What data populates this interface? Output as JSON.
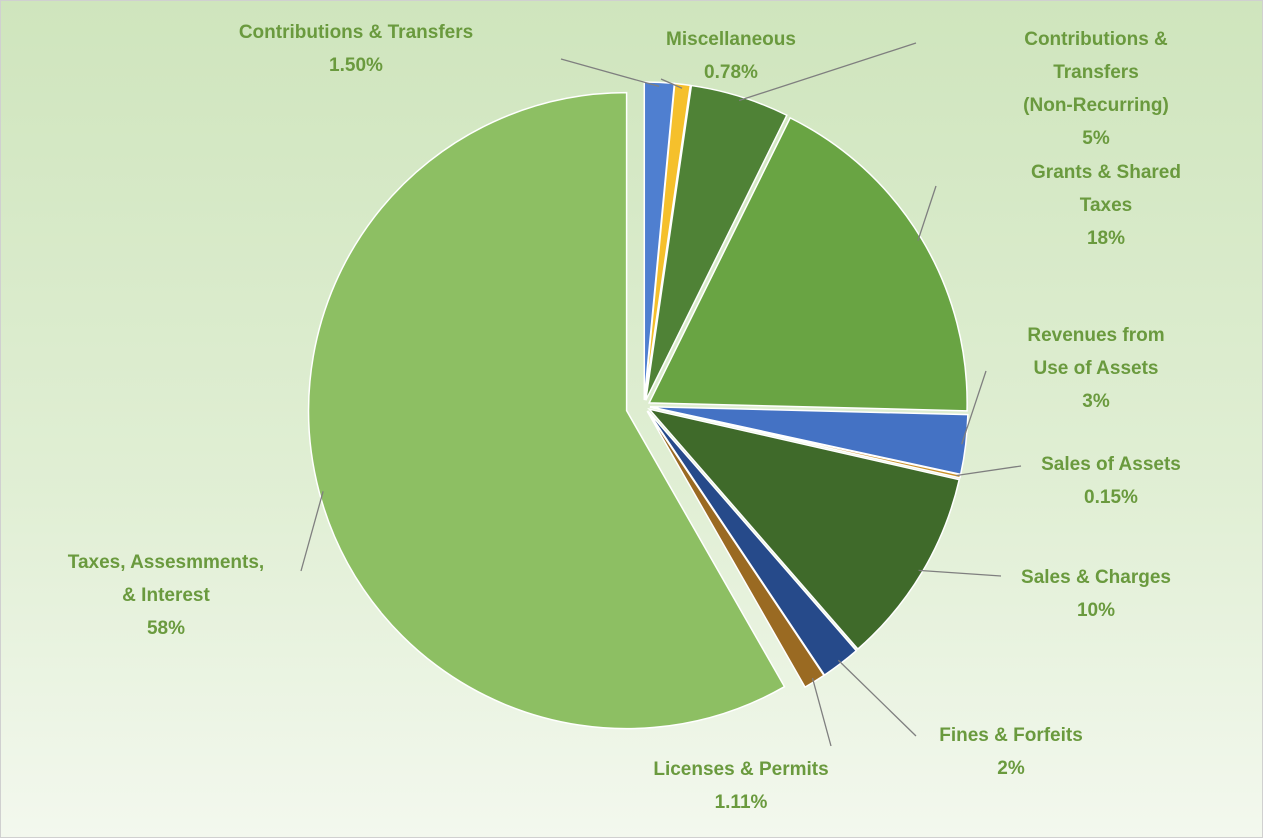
{
  "chart_data": {
    "type": "pie",
    "categories": [
      "Contributions & Transfers",
      "Miscellaneous",
      "Contributions & Transfers\n(Non-Recurring)",
      "Grants & Shared Taxes",
      "Revenues from\nUse of Assets",
      "Sales of Assets",
      "Sales & Charges",
      "Fines & Forfeits",
      "Licenses & Permits",
      "Taxes, Assesmments,\n& Interest"
    ],
    "values": [
      1.5,
      0.78,
      5,
      18,
      3,
      0.15,
      10,
      2,
      1.11,
      58
    ],
    "value_labels": [
      "1.50%",
      "0.78%",
      "5%",
      "18%",
      "3%",
      "0.15%",
      "10%",
      "2%",
      "1.11%",
      "58%"
    ],
    "colors": [
      "#4f7fd0",
      "#f5c02c",
      "#4f8236",
      "#69a443",
      "#4472c4",
      "#c9922a",
      "#3f6a2a",
      "#264a8a",
      "#9a6a22",
      "#8dbf63"
    ]
  }
}
